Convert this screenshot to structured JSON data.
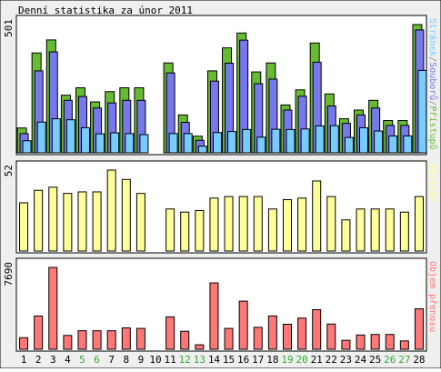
{
  "title": "Denní statistika za únor 2011",
  "colors": {
    "frame_bg": "#efefef",
    "panel_bg": "#ffffff",
    "border": "#000000",
    "hits": "#66bb33",
    "files": "#7777ee",
    "pages": "#77ccff",
    "visits": "#ffff99",
    "kbytes": "#ff7777",
    "weekend_label": "#33aa33",
    "weekday_label": "#000000"
  },
  "chart_data": [
    {
      "type": "bar",
      "panel": "top",
      "y_max_label": "501",
      "right_label_parts": [
        {
          "text": "Stránek",
          "color": "#77ccff"
        },
        {
          "text": "/",
          "color": "#888888"
        },
        {
          "text": "Souborů",
          "color": "#7777ee"
        },
        {
          "text": "/",
          "color": "#888888"
        },
        {
          "text": "Přístupů",
          "color": "#66bb33"
        }
      ],
      "ylim": [
        0,
        501
      ],
      "categories": [
        "1",
        "2",
        "3",
        "4",
        "5",
        "6",
        "7",
        "8",
        "9",
        "10",
        "11",
        "12",
        "13",
        "14",
        "15",
        "16",
        "17",
        "18",
        "19",
        "20",
        "21",
        "22",
        "23",
        "24",
        "25",
        "26",
        "27",
        "28"
      ],
      "series": [
        {
          "name": "Přístupů",
          "key": "hits",
          "values": [
            97,
            390,
            441,
            225,
            254,
            199,
            239,
            254,
            254,
            0,
            351,
            148,
            65,
            320,
            410,
            468,
            316,
            351,
            187,
            246,
            429,
            230,
            133,
            167,
            205,
            126,
            126,
            501
          ]
        },
        {
          "name": "Souborů",
          "key": "files",
          "values": [
            75,
            320,
            394,
            205,
            220,
            175,
            195,
            205,
            205,
            0,
            312,
            119,
            49,
            280,
            350,
            440,
            270,
            288,
            167,
            221,
            354,
            183,
            115,
            148,
            175,
            107,
            107,
            480
          ]
        },
        {
          "name": "Stránek",
          "key": "pages",
          "values": [
            47,
            120,
            133,
            129,
            98,
            74,
            78,
            75,
            71,
            0,
            75,
            75,
            26,
            79,
            83,
            91,
            61,
            92,
            91,
            93,
            105,
            106,
            60,
            98,
            85,
            66,
            66,
            322
          ]
        }
      ]
    },
    {
      "type": "bar",
      "panel": "middle",
      "y_max_label": "52",
      "right_label": "Návštěv",
      "ylim": [
        0,
        52
      ],
      "categories": [
        "1",
        "2",
        "3",
        "4",
        "5",
        "6",
        "7",
        "8",
        "9",
        "10",
        "11",
        "12",
        "13",
        "14",
        "15",
        "16",
        "17",
        "18",
        "19",
        "20",
        "21",
        "22",
        "23",
        "24",
        "25",
        "26",
        "27",
        "28"
      ],
      "series": [
        {
          "name": "Návštěv",
          "key": "visits",
          "values": [
            31,
            39,
            41,
            37,
            38,
            38,
            52,
            46,
            37,
            0,
            27,
            25,
            26,
            34,
            35,
            35,
            35,
            27,
            33,
            34,
            45,
            35,
            20,
            27,
            27,
            27,
            25,
            35
          ]
        }
      ]
    },
    {
      "type": "bar",
      "panel": "bottom",
      "y_max_label": "7690",
      "right_label": "Objem přenosu",
      "ylim": [
        0,
        7690
      ],
      "categories": [
        "1",
        "2",
        "3",
        "4",
        "5",
        "6",
        "7",
        "8",
        "9",
        "10",
        "11",
        "12",
        "13",
        "14",
        "15",
        "16",
        "17",
        "18",
        "19",
        "20",
        "21",
        "22",
        "23",
        "24",
        "25",
        "26",
        "27",
        "28"
      ],
      "series": [
        {
          "name": "Objem přenosu",
          "key": "kbytes",
          "values": [
            1090,
            3120,
            7690,
            1300,
            1740,
            1740,
            1740,
            2010,
            1960,
            0,
            3040,
            1690,
            420,
            6230,
            1960,
            4520,
            2060,
            3130,
            2350,
            2930,
            3720,
            2370,
            840,
            1340,
            1390,
            1390,
            780,
            3800
          ]
        }
      ]
    }
  ],
  "x_labels": [
    {
      "text": "1",
      "weekend": false
    },
    {
      "text": "2",
      "weekend": false
    },
    {
      "text": "3",
      "weekend": false
    },
    {
      "text": "4",
      "weekend": false
    },
    {
      "text": "5",
      "weekend": true
    },
    {
      "text": "6",
      "weekend": true
    },
    {
      "text": "7",
      "weekend": false
    },
    {
      "text": "8",
      "weekend": false
    },
    {
      "text": "9",
      "weekend": false
    },
    {
      "text": "10",
      "weekend": false
    },
    {
      "text": "11",
      "weekend": false
    },
    {
      "text": "12",
      "weekend": true
    },
    {
      "text": "13",
      "weekend": true
    },
    {
      "text": "14",
      "weekend": false
    },
    {
      "text": "15",
      "weekend": false
    },
    {
      "text": "16",
      "weekend": false
    },
    {
      "text": "17",
      "weekend": false
    },
    {
      "text": "18",
      "weekend": false
    },
    {
      "text": "19",
      "weekend": true
    },
    {
      "text": "20",
      "weekend": true
    },
    {
      "text": "21",
      "weekend": false
    },
    {
      "text": "22",
      "weekend": false
    },
    {
      "text": "23",
      "weekend": false
    },
    {
      "text": "24",
      "weekend": false
    },
    {
      "text": "25",
      "weekend": false
    },
    {
      "text": "26",
      "weekend": true
    },
    {
      "text": "27",
      "weekend": true
    },
    {
      "text": "28",
      "weekend": false
    }
  ]
}
